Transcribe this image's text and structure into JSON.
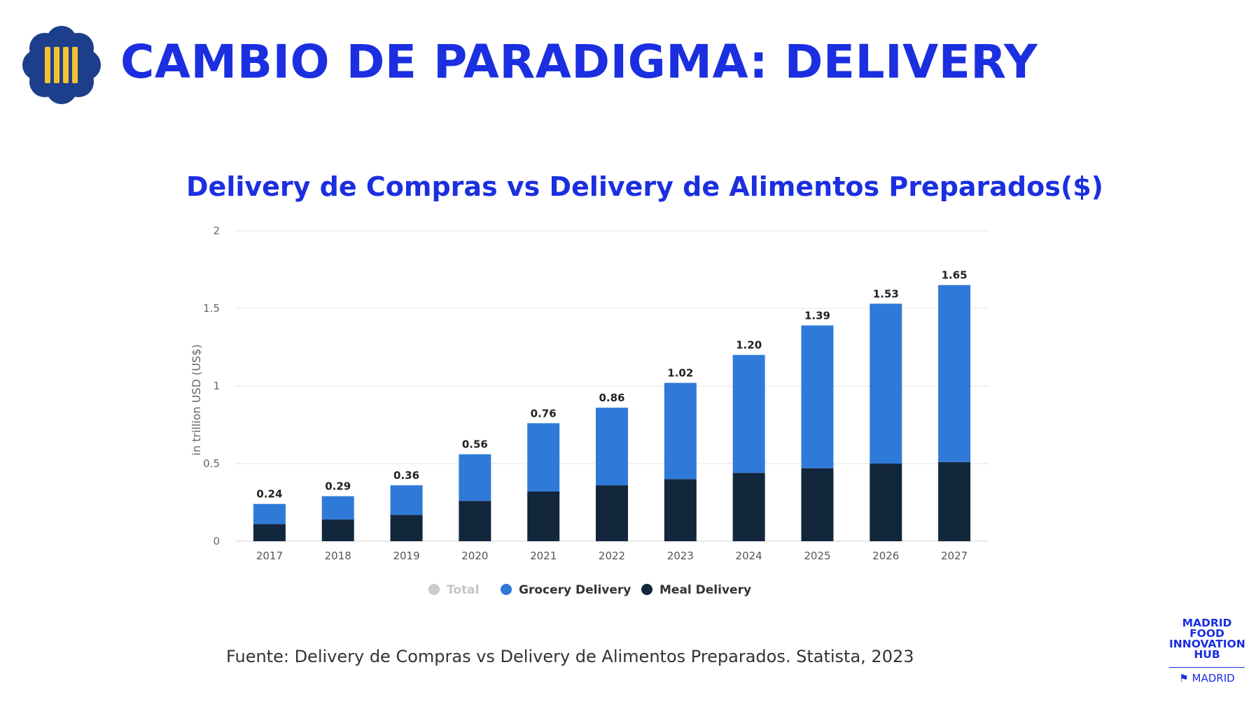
{
  "header": {
    "title": "CAMBIO DE PARADIGMA: DELIVERY"
  },
  "colors": {
    "title_blue": "#1b2fe0",
    "logo_blue": "#1d3e8a",
    "logo_yellow": "#f2c230",
    "grocery": "#2f7ad9",
    "meal": "#12263c",
    "total": "#cccccc"
  },
  "chart_data": {
    "type": "bar",
    "stacked": true,
    "title": "Delivery de Compras vs Delivery de Alimentos Preparados($)",
    "ylabel": "in trillion USD (US$)",
    "xlabel": "",
    "ylim": [
      0,
      2
    ],
    "yticks": [
      "0",
      "0.5",
      "1",
      "1.5",
      "2"
    ],
    "grid": true,
    "legend_position": "bottom",
    "categories": [
      "2017",
      "2018",
      "2019",
      "2020",
      "2021",
      "2022",
      "2023",
      "2024",
      "2025",
      "2026",
      "2027"
    ],
    "series": [
      {
        "name": "Total",
        "values": [
          0.24,
          0.29,
          0.36,
          0.56,
          0.76,
          0.86,
          1.02,
          1.2,
          1.39,
          1.53,
          1.65
        ]
      },
      {
        "name": "Grocery Delivery",
        "values": [
          0.13,
          0.15,
          0.19,
          0.3,
          0.44,
          0.5,
          0.62,
          0.76,
          0.92,
          1.03,
          1.14
        ]
      },
      {
        "name": "Meal Delivery",
        "values": [
          0.11,
          0.14,
          0.17,
          0.26,
          0.32,
          0.36,
          0.4,
          0.44,
          0.47,
          0.5,
          0.51
        ]
      }
    ],
    "data_labels": [
      "0.24",
      "0.29",
      "0.36",
      "0.56",
      "0.76",
      "0.86",
      "1.02",
      "1.20",
      "1.39",
      "1.53",
      "1.65"
    ]
  },
  "source": {
    "text": "Fuente: Delivery de Compras vs Delivery de Alimentos Preparados. Statista, 2023"
  },
  "hub_logo": {
    "lines": [
      "MADRID",
      "FOOD",
      "INNOVATION",
      "HUB"
    ],
    "city": "MADRID"
  }
}
